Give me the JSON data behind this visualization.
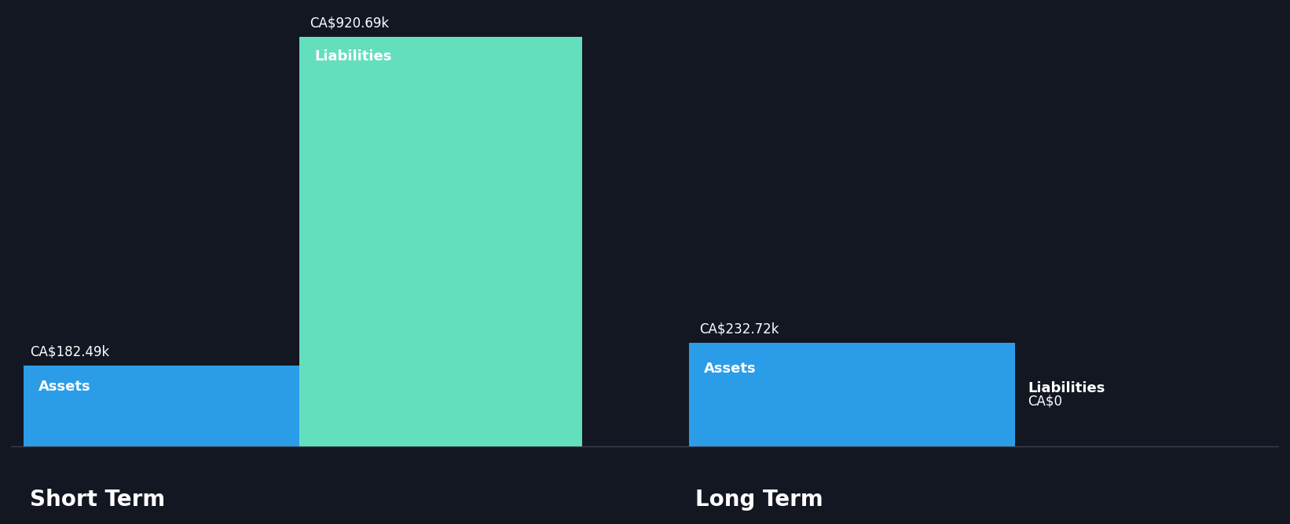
{
  "background_color": "#131722",
  "short_term": {
    "assets_value": 182490,
    "liabilities_value": 920690,
    "assets_label": "Assets",
    "liabilities_label": "Liabilities",
    "assets_annotation": "CA$182.49k",
    "liabilities_annotation": "CA$920.69k",
    "title": "Short Term"
  },
  "long_term": {
    "assets_value": 232720,
    "liabilities_value": 0,
    "assets_label": "Assets",
    "liabilities_label": "Liabilities",
    "assets_annotation": "CA$232.72k",
    "liabilities_annotation": "CA$0",
    "title": "Long Term"
  },
  "assets_color": "#2b9de8",
  "liabilities_color": "#64dfbe",
  "text_color": "#ffffff",
  "label_fontsize": 13,
  "annotation_fontsize": 12,
  "title_fontsize": 20,
  "ylim_max": 980000
}
